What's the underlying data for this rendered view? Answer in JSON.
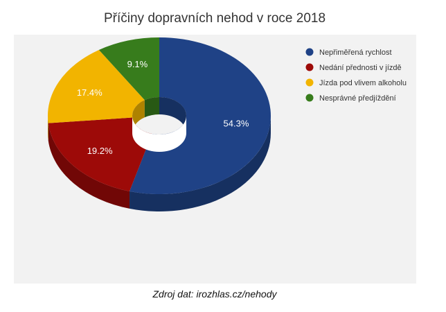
{
  "chart_data": {
    "type": "pie",
    "title": "Příčiny dopravních nehod v roce 2018",
    "categories": [
      "Nepřiměřená rychlost",
      "Nedání přednosti v jízdě",
      "Jízda pod vlivem alkoholu",
      "Nesprávné předjíždění"
    ],
    "values": [
      54.3,
      19.2,
      17.4,
      9.1
    ],
    "labels": [
      "54.3%",
      "19.2%",
      "17.4%",
      "9.1%"
    ],
    "colors": [
      "#1f4286",
      "#9d0a08",
      "#f2b400",
      "#377c1c"
    ],
    "donut": true,
    "legend_position": "top-right"
  },
  "footer": {
    "source": "Zdroj dat: irozhlas.cz/nehody"
  }
}
